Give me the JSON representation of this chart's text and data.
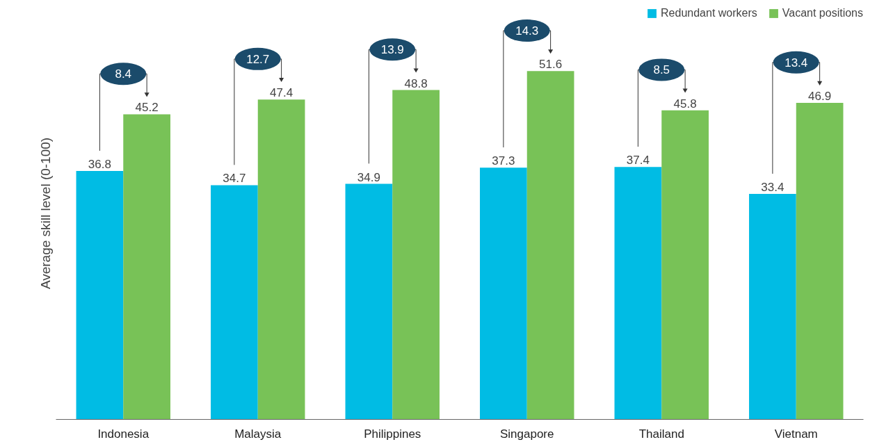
{
  "chart_data": {
    "type": "bar",
    "ylabel": "Average skill level (0-100)",
    "categories": [
      "Indonesia",
      "Malaysia",
      "Philippines",
      "Singapore",
      "Thailand",
      "Vietnam"
    ],
    "series": [
      {
        "name": "Redundant workers",
        "color": "#00bce4",
        "values": [
          36.8,
          34.7,
          34.9,
          37.3,
          37.4,
          33.4
        ]
      },
      {
        "name": "Vacant positions",
        "color": "#78c257",
        "values": [
          45.2,
          47.4,
          48.8,
          51.6,
          45.8,
          46.9
        ]
      }
    ],
    "annotations": [
      "8.4",
      "12.7",
      "13.9",
      "14.3",
      "8.5",
      "13.4"
    ],
    "data_labels": true,
    "legend": "top right",
    "grid": false,
    "tick_labels": "x"
  }
}
